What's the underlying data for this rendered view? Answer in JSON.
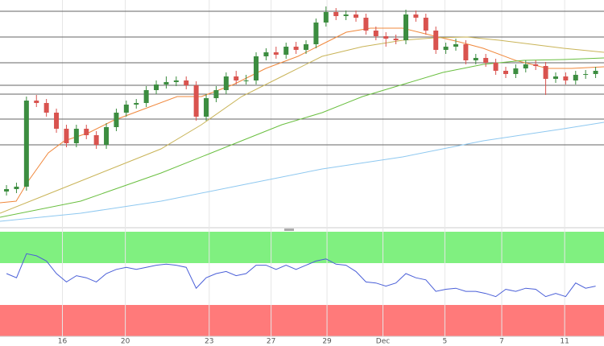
{
  "chart_data": [
    {
      "type": "candlestick",
      "xlim": [
        -0.65,
        59.84
      ],
      "ylim": [
        0,
        280
      ],
      "xticks": [
        {
          "value": 5.6,
          "label": "16"
        },
        {
          "value": 11.9,
          "label": "20"
        },
        {
          "value": 20.3,
          "label": "23"
        },
        {
          "value": 26.5,
          "label": "27"
        },
        {
          "value": 32.1,
          "label": "29"
        },
        {
          "value": 37.7,
          "label": "Dec"
        },
        {
          "value": 43.9,
          "label": "5"
        },
        {
          "value": 49.6,
          "label": "7"
        },
        {
          "value": 55.9,
          "label": "11"
        }
      ],
      "levels": [
        266,
        234,
        202,
        174,
        163,
        132,
        100
      ],
      "up_color": "#3c8d40",
      "down_color": "#d9534f",
      "candles": {
        "x": [
          0,
          1,
          2,
          3,
          4,
          5,
          6,
          7,
          8,
          9,
          10,
          11,
          12,
          13,
          14,
          15,
          16,
          17,
          18,
          19,
          20,
          21,
          22,
          23,
          24,
          25,
          26,
          27,
          28,
          29,
          30,
          31,
          32,
          33,
          34,
          35,
          36,
          37,
          38,
          39,
          40,
          41,
          42,
          43,
          44,
          45,
          46,
          47,
          48,
          49,
          50,
          51,
          52,
          53,
          54,
          55,
          56,
          57,
          58,
          59
        ],
        "open": [
          42,
          45,
          48,
          155,
          152,
          140,
          120,
          102,
          120,
          112,
          100,
          122,
          140,
          150,
          152,
          168,
          175,
          178,
          180,
          174,
          135,
          158,
          168,
          185,
          180,
          180,
          210,
          215,
          212,
          222,
          218,
          225,
          252,
          265,
          260,
          262,
          258,
          242,
          235,
          232,
          230,
          262,
          258,
          242,
          218,
          222,
          225,
          205,
          208,
          202,
          192,
          188,
          195,
          200,
          198,
          182,
          185,
          180,
          187,
          188
        ],
        "high": [
          50,
          53,
          160,
          162,
          157,
          145,
          125,
          125,
          125,
          117,
          127,
          145,
          155,
          157,
          173,
          180,
          185,
          185,
          185,
          179,
          163,
          173,
          190,
          192,
          187,
          215,
          220,
          222,
          227,
          228,
          230,
          257,
          272,
          270,
          267,
          267,
          263,
          247,
          240,
          237,
          268,
          267,
          263,
          247,
          227,
          232,
          230,
          213,
          213,
          207,
          197,
          200,
          205,
          205,
          203,
          190,
          190,
          192,
          193,
          197
        ],
        "low": [
          37,
          40,
          43,
          147,
          135,
          115,
          97,
          97,
          107,
          95,
          95,
          117,
          135,
          145,
          147,
          163,
          170,
          173,
          169,
          130,
          130,
          153,
          163,
          175,
          175,
          175,
          205,
          207,
          207,
          213,
          213,
          220,
          247,
          255,
          255,
          253,
          237,
          230,
          222,
          225,
          225,
          253,
          237,
          213,
          213,
          217,
          200,
          200,
          197,
          187,
          183,
          183,
          190,
          193,
          162,
          177,
          175,
          175,
          182,
          183
        ],
        "close": [
          45,
          48,
          155,
          152,
          140,
          120,
          102,
          120,
          112,
          100,
          122,
          140,
          150,
          152,
          168,
          175,
          178,
          180,
          174,
          135,
          158,
          168,
          185,
          180,
          180,
          210,
          215,
          212,
          222,
          218,
          225,
          252,
          265,
          260,
          262,
          258,
          242,
          235,
          232,
          230,
          262,
          258,
          242,
          218,
          222,
          225,
          205,
          208,
          202,
          192,
          188,
          195,
          200,
          198,
          182,
          185,
          180,
          187,
          188,
          192
        ]
      },
      "series": [
        {
          "color": "#f0883c",
          "x": [
            -0.65,
            0.97,
            2.18,
            4.19,
            5.81,
            8.23,
            10.65,
            13.87,
            17.1,
            19.52,
            22.74,
            25.97,
            29.19,
            31.61,
            34.03,
            36.45,
            39.68,
            42.9,
            45.32,
            47.74,
            50.97,
            54.19,
            56.61,
            59.84
          ],
          "values": [
            28,
            30,
            55,
            90,
            105,
            115,
            130,
            145,
            160,
            160,
            175,
            195,
            210,
            225,
            240,
            245,
            245,
            235,
            228,
            220,
            205,
            195,
            195,
            197
          ]
        },
        {
          "color": "#c9b458",
          "x": [
            -0.65,
            3.39,
            7.42,
            11.45,
            15.48,
            19.52,
            23.55,
            27.58,
            31.61,
            35.65,
            39.68,
            42.9,
            46.13,
            49.35,
            52.58,
            55.81,
            59.84
          ],
          "values": [
            15,
            35,
            55,
            75,
            95,
            125,
            160,
            185,
            210,
            222,
            230,
            233,
            234,
            230,
            225,
            220,
            215
          ]
        },
        {
          "color": "#6abf40",
          "x": [
            -0.65,
            7.42,
            15.48,
            23.55,
            27.58,
            31.61,
            35.65,
            39.68,
            43.71,
            47.74,
            51.77,
            55.81,
            59.84
          ],
          "values": [
            10,
            30,
            65,
            105,
            125,
            140,
            160,
            175,
            190,
            200,
            205,
            206,
            208
          ]
        },
        {
          "color": "#8ec8f0",
          "x": [
            -0.65,
            7.42,
            15.48,
            23.55,
            31.61,
            39.68,
            47.74,
            55.81,
            59.84
          ],
          "values": [
            5,
            15,
            30,
            50,
            70,
            85,
            105,
            120,
            128
          ]
        }
      ]
    },
    {
      "type": "line",
      "ylim": [
        0,
        100
      ],
      "overbought": 70,
      "oversold": 30,
      "overbought_color": "#80f080",
      "oversold_color": "#ff7a7a",
      "color": "#4a5fd8",
      "x": [
        0,
        1,
        2,
        3,
        4,
        5,
        6,
        7,
        8,
        9,
        10,
        11,
        12,
        13,
        14,
        15,
        16,
        17,
        18,
        19,
        20,
        21,
        22,
        23,
        24,
        25,
        26,
        27,
        28,
        29,
        30,
        31,
        32,
        33,
        34,
        35,
        36,
        37,
        38,
        39,
        40,
        41,
        42,
        43,
        44,
        45,
        46,
        47,
        48,
        49,
        50,
        51,
        52,
        53,
        54,
        55,
        56,
        57,
        58,
        59
      ],
      "values": [
        60,
        56,
        79,
        77,
        72,
        60,
        52,
        58,
        56,
        52,
        60,
        64,
        66,
        64,
        66,
        68,
        69,
        68,
        66,
        46,
        56,
        60,
        62,
        58,
        60,
        68,
        68,
        64,
        68,
        64,
        68,
        72,
        74,
        69,
        68,
        62,
        52,
        51,
        48,
        51,
        60,
        56,
        54,
        43,
        45,
        46,
        43,
        43,
        41,
        38,
        45,
        43,
        46,
        45,
        38,
        41,
        38,
        51,
        46,
        48
      ]
    }
  ]
}
